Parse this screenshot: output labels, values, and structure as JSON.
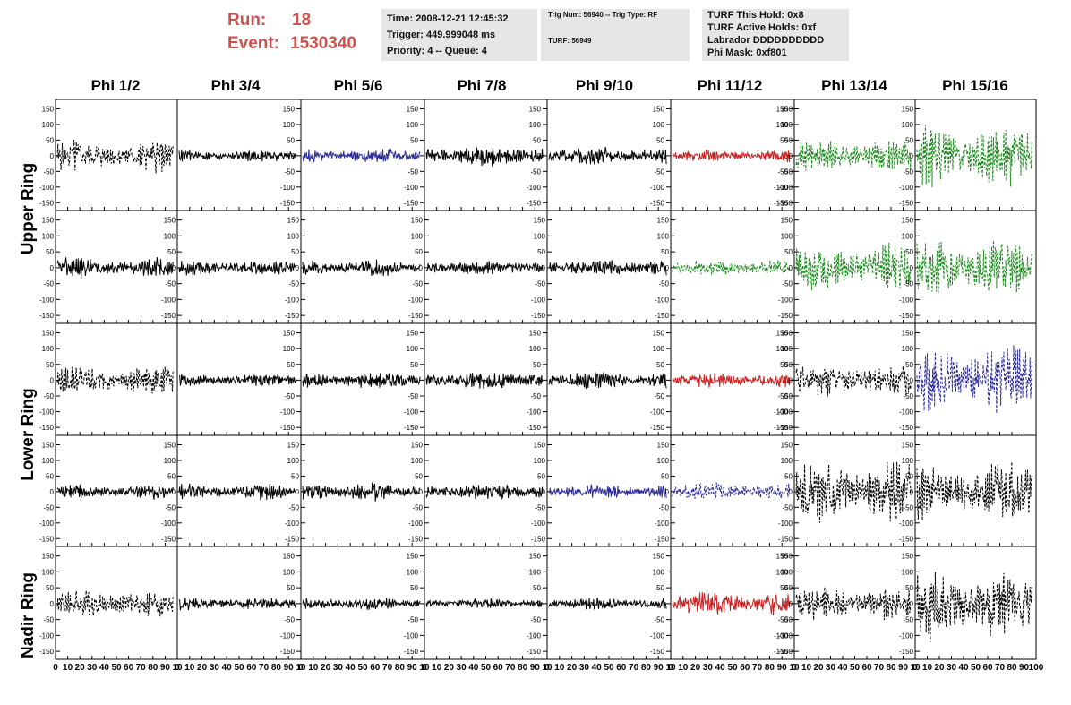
{
  "header": {
    "run_label": "Run:",
    "run_value": "18",
    "event_label": "Event:",
    "event_value": "1530340",
    "time": "Time: 2008-12-21 12:45:32",
    "trigger": "Trigger: 449.999048 ms",
    "priority": "Priority: 4 -- Queue: 4",
    "trig_num": "Trig Num: 56940 -- Trig Type: RF",
    "turf": "TURF: 56949",
    "turf_this_hold": "TURF This Hold: 0x8",
    "turf_active_holds": "TURF Active Holds: 0xf",
    "labrador": "Labrador DDDDDDDDDD",
    "phi_mask": "Phi Mask: 0xf801"
  },
  "columns": [
    "Phi 1/2",
    "Phi 3/4",
    "Phi 5/6",
    "Phi 7/8",
    "Phi 9/10",
    "Phi 11/12",
    "Phi 13/14",
    "Phi 15/16"
  ],
  "rows": [
    "Upper Ring",
    "Lower Ring",
    "Nadir Ring"
  ],
  "colors": {
    "black": "#000000",
    "blue": "#2b2b9a",
    "red": "#cc2020",
    "green": "#1f8a1f"
  },
  "chart_data": {
    "type": "line",
    "ylim": [
      -175,
      180
    ],
    "xlim": [
      0,
      100
    ],
    "y_ticks": [
      150,
      100,
      50,
      0,
      -50,
      -100,
      -150
    ],
    "y_tick_labels": [
      "150",
      "100",
      "50",
      "0",
      "-50",
      "-100",
      "-150"
    ],
    "x_tick_labels_first": [
      "0",
      "10",
      "20",
      "30",
      "40",
      "50",
      "60",
      "70",
      "80",
      "90",
      "10"
    ],
    "x_tick_labels_inner": [
      "0",
      "10",
      "20",
      "30",
      "40",
      "50",
      "60",
      "70",
      "80",
      "90",
      "10"
    ],
    "x_tick_labels_last": [
      "0",
      "10",
      "20",
      "30",
      "40",
      "50",
      "60",
      "70",
      "80",
      "90",
      "100"
    ],
    "panels": [
      [
        {
          "color": "black",
          "dashed": true,
          "amp": 40,
          "side": "left"
        },
        {
          "color": "black",
          "dashed": false,
          "amp": 15,
          "side": "right"
        },
        {
          "color": "blue",
          "dashed": false,
          "amp": 18,
          "side": "right"
        },
        {
          "color": "black",
          "dashed": false,
          "amp": 25,
          "side": "right"
        },
        {
          "color": "black",
          "dashed": false,
          "amp": 22,
          "side": "right"
        },
        {
          "color": "red",
          "dashed": false,
          "amp": 15,
          "side": "right"
        },
        {
          "color": "green",
          "dashed": true,
          "amp": 40,
          "side": "left"
        },
        {
          "color": "green",
          "dashed": true,
          "amp": 75,
          "side": "left"
        }
      ],
      [
        {
          "color": "black",
          "dashed": false,
          "amp": 25,
          "side": "left"
        },
        {
          "color": "black",
          "dashed": false,
          "amp": 18,
          "side": "left"
        },
        {
          "color": "black",
          "dashed": false,
          "amp": 20,
          "side": "left"
        },
        {
          "color": "black",
          "dashed": false,
          "amp": 18,
          "side": "left"
        },
        {
          "color": "black",
          "dashed": false,
          "amp": 20,
          "side": "left"
        },
        {
          "color": "green",
          "dashed": true,
          "amp": 20,
          "side": "left"
        },
        {
          "color": "green",
          "dashed": true,
          "amp": 60,
          "side": "left"
        },
        {
          "color": "green",
          "dashed": true,
          "amp": 70,
          "side": "left"
        }
      ],
      [
        {
          "color": "black",
          "dashed": true,
          "amp": 35,
          "side": "left"
        },
        {
          "color": "black",
          "dashed": false,
          "amp": 15,
          "side": "right"
        },
        {
          "color": "black",
          "dashed": false,
          "amp": 20,
          "side": "right"
        },
        {
          "color": "black",
          "dashed": false,
          "amp": 22,
          "side": "right"
        },
        {
          "color": "black",
          "dashed": false,
          "amp": 22,
          "side": "right"
        },
        {
          "color": "red",
          "dashed": false,
          "amp": 18,
          "side": "right"
        },
        {
          "color": "black",
          "dashed": true,
          "amp": 40,
          "side": "left"
        },
        {
          "color": "blue",
          "dashed": true,
          "amp": 85,
          "side": "left"
        }
      ],
      [
        {
          "color": "black",
          "dashed": false,
          "amp": 18,
          "side": "left"
        },
        {
          "color": "black",
          "dashed": false,
          "amp": 20,
          "side": "left"
        },
        {
          "color": "black",
          "dashed": false,
          "amp": 22,
          "side": "left"
        },
        {
          "color": "black",
          "dashed": false,
          "amp": 22,
          "side": "left"
        },
        {
          "color": "blue",
          "dashed": false,
          "amp": 18,
          "side": "left"
        },
        {
          "color": "blue",
          "dashed": true,
          "amp": 22,
          "side": "left"
        },
        {
          "color": "black",
          "dashed": true,
          "amp": 75,
          "side": "left"
        },
        {
          "color": "black",
          "dashed": true,
          "amp": 75,
          "side": "left"
        }
      ],
      [
        {
          "color": "black",
          "dashed": true,
          "amp": 35,
          "side": "left"
        },
        {
          "color": "black",
          "dashed": false,
          "amp": 15,
          "side": "right"
        },
        {
          "color": "black",
          "dashed": false,
          "amp": 15,
          "side": "right"
        },
        {
          "color": "black",
          "dashed": false,
          "amp": 12,
          "side": "right"
        },
        {
          "color": "black",
          "dashed": false,
          "amp": 14,
          "side": "right"
        },
        {
          "color": "red",
          "dashed": false,
          "amp": 30,
          "side": "right"
        },
        {
          "color": "black",
          "dashed": true,
          "amp": 40,
          "side": "left"
        },
        {
          "color": "black",
          "dashed": true,
          "amp": 85,
          "side": "left"
        }
      ]
    ]
  }
}
